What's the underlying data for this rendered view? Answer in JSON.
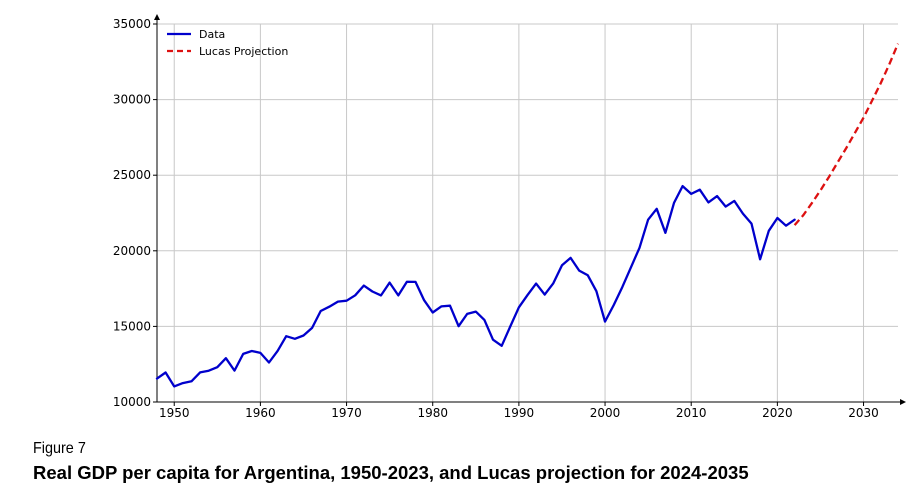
{
  "figure_label": "Figure 7",
  "caption": "Real GDP per capita for Argentina, 1950-2023, and Lucas projection for 2024-2035",
  "chart_data": {
    "type": "line",
    "title": "",
    "xlabel": "",
    "ylabel": "",
    "xlim": [
      1948,
      2034
    ],
    "ylim": [
      10000,
      35000
    ],
    "x_ticks": [
      1950,
      1960,
      1970,
      1980,
      1990,
      2000,
      2010,
      2020,
      2030
    ],
    "y_ticks": [
      10000,
      15000,
      20000,
      25000,
      30000,
      35000
    ],
    "grid": true,
    "legend_position": "top-left",
    "series": [
      {
        "name": "Data",
        "color": "#0000cc",
        "style": "solid",
        "x": [
          1948,
          1949,
          1950,
          1951,
          1952,
          1953,
          1954,
          1955,
          1956,
          1957,
          1958,
          1959,
          1960,
          1961,
          1962,
          1963,
          1964,
          1965,
          1966,
          1967,
          1968,
          1969,
          1970,
          1971,
          1972,
          1973,
          1974,
          1975,
          1976,
          1977,
          1978,
          1979,
          1980,
          1981,
          1982,
          1983,
          1984,
          1985,
          1986,
          1987,
          1988,
          1989,
          1990,
          1991,
          1992,
          1993,
          1994,
          1995,
          1996,
          1997,
          1998,
          1999,
          2000,
          2001,
          2002,
          2003,
          2004,
          2005,
          2006,
          2007,
          2008,
          2009,
          2010,
          2011,
          2012,
          2013,
          2014,
          2015,
          2016,
          2017,
          2018,
          2019,
          2020,
          2021,
          2022
        ],
        "y": [
          11550,
          11950,
          11030,
          11250,
          11370,
          11960,
          12070,
          12300,
          12900,
          12080,
          13180,
          13370,
          13250,
          12610,
          13380,
          14350,
          14180,
          14400,
          14900,
          16020,
          16300,
          16640,
          16700,
          17060,
          17700,
          17310,
          17050,
          17900,
          17050,
          17950,
          17940,
          16730,
          15920,
          16320,
          16370,
          15010,
          15830,
          15980,
          15430,
          14120,
          13720,
          15000,
          16260,
          17070,
          17830,
          17100,
          17850,
          19050,
          19530,
          18690,
          18380,
          17330,
          15320,
          16410,
          17600,
          18900,
          20200,
          22060,
          22780,
          21190,
          23170,
          24280,
          23760,
          24040,
          23200,
          23620,
          22920,
          23300,
          22460,
          21800,
          19440,
          21320,
          22170,
          21660,
          22060
        ]
      },
      {
        "name": "Lucas Projection",
        "color": "#dd1111",
        "style": "dashed",
        "x": [
          2022,
          2023,
          2024,
          2025,
          2026,
          2027,
          2028,
          2029,
          2030,
          2031,
          2032,
          2033,
          2034
        ],
        "y": [
          21700,
          22350,
          23150,
          24000,
          24900,
          25850,
          26800,
          27800,
          28800,
          29950,
          31100,
          32350,
          33700
        ]
      }
    ]
  }
}
